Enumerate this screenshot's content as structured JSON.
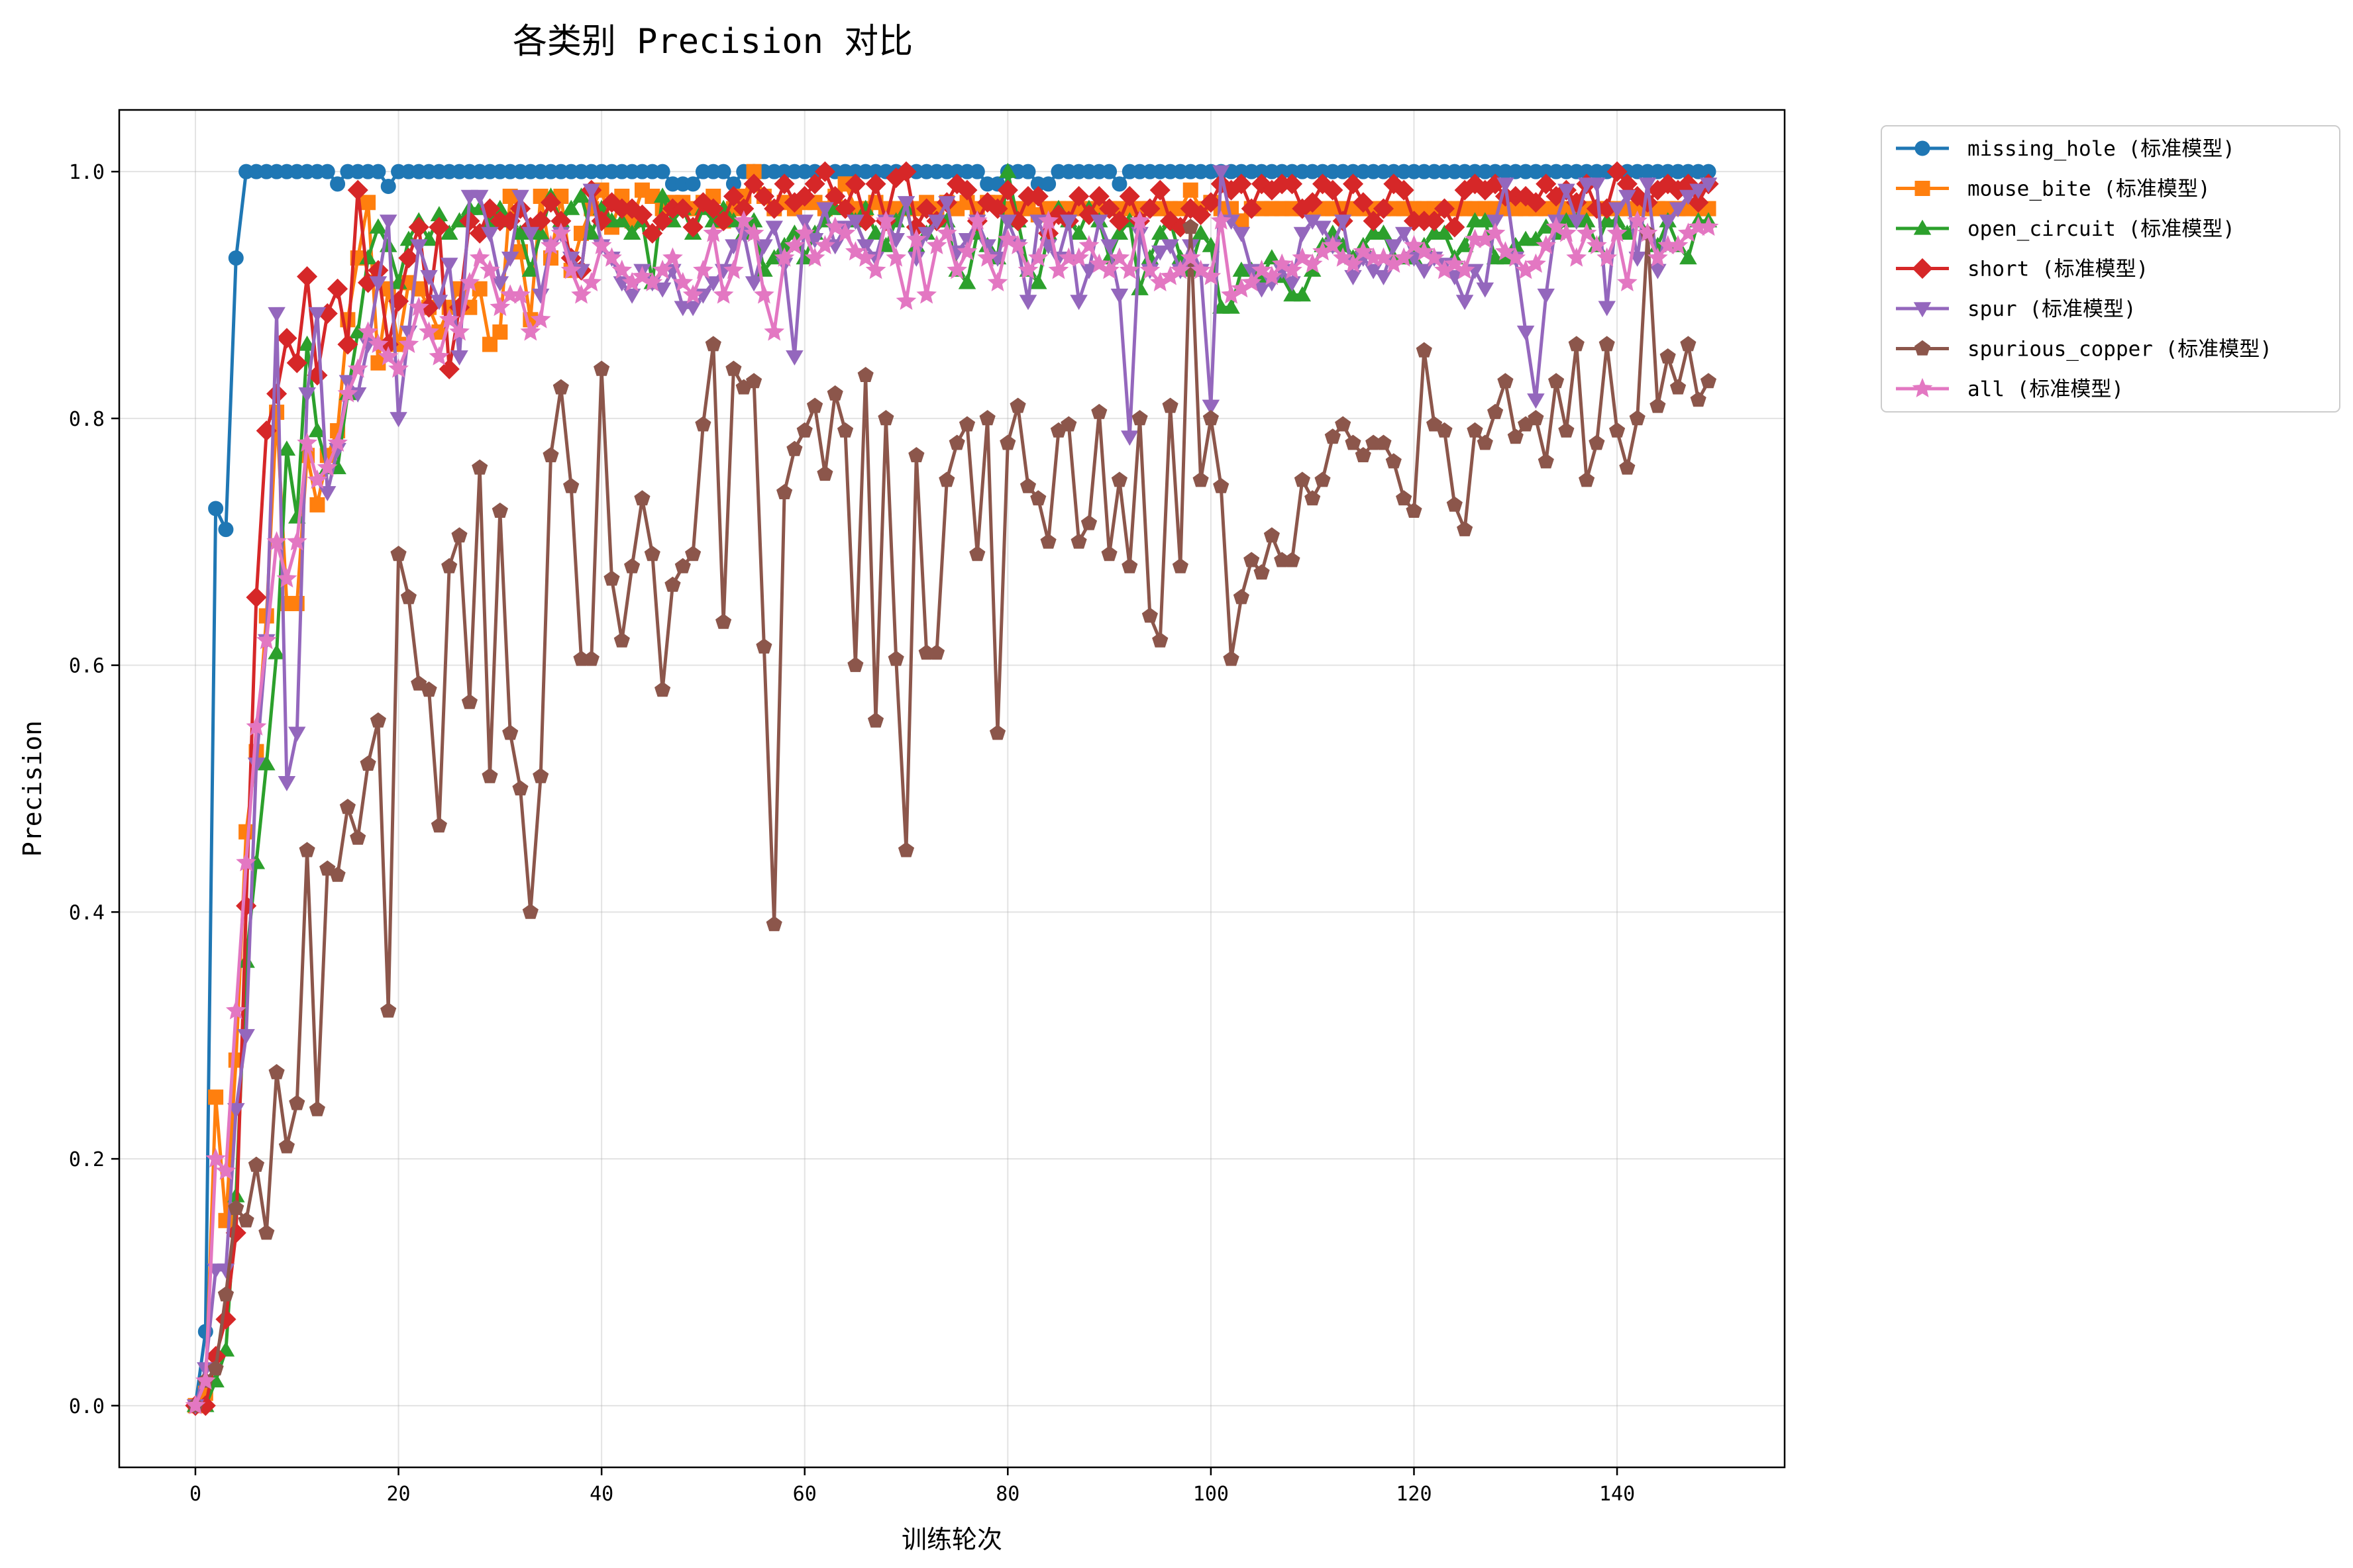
{
  "chart_data": {
    "type": "line",
    "title": "各类别 Precision 对比",
    "xlabel": "训练轮次",
    "ylabel": "Precision",
    "xlim": [
      -7.5,
      156.5
    ],
    "ylim": [
      -0.05,
      1.05
    ],
    "xticks": [
      0,
      20,
      40,
      60,
      80,
      100,
      120,
      140
    ],
    "yticks": [
      0.0,
      0.2,
      0.4,
      0.6,
      0.8,
      1.0
    ],
    "grid": true,
    "legend_position": "outside-top-right",
    "series": [
      {
        "name": "missing_hole (标准模型)",
        "color": "#1f77b4",
        "marker": "circle",
        "values": [
          0.0,
          0.06,
          0.727,
          0.71,
          0.93,
          1.0,
          1.0,
          1.0,
          1.0,
          1.0,
          1.0,
          1.0,
          1.0,
          1.0,
          0.99,
          1.0,
          1.0,
          1.0,
          1.0,
          0.988,
          1.0,
          1.0,
          1.0,
          1.0,
          1.0,
          1.0,
          1.0,
          1.0,
          1.0,
          1.0,
          1.0,
          1.0,
          1.0,
          1.0,
          1.0,
          1.0,
          1.0,
          1.0,
          1.0,
          1.0,
          1.0,
          1.0,
          1.0,
          1.0,
          1.0,
          1.0,
          1.0,
          0.99,
          0.99,
          0.99,
          1.0,
          1.0,
          1.0,
          0.99,
          1.0,
          1.0,
          1.0,
          1.0,
          1.0,
          1.0,
          1.0,
          1.0,
          1.0,
          1.0,
          1.0,
          1.0,
          1.0,
          1.0,
          1.0,
          1.0,
          1.0,
          1.0,
          1.0,
          1.0,
          1.0,
          1.0,
          1.0,
          1.0,
          0.99,
          0.99,
          1.0,
          1.0,
          1.0,
          0.99,
          0.99,
          1.0,
          1.0,
          1.0,
          1.0,
          1.0,
          1.0,
          0.99,
          1.0,
          1.0,
          1.0,
          1.0,
          1.0,
          1.0,
          1.0,
          1.0,
          1.0,
          1.0,
          1.0,
          1.0,
          1.0,
          1.0,
          1.0,
          1.0,
          1.0,
          1.0,
          1.0,
          1.0,
          1.0,
          1.0,
          1.0,
          1.0,
          1.0,
          1.0,
          1.0,
          1.0,
          1.0,
          1.0,
          1.0,
          1.0,
          1.0,
          1.0,
          1.0,
          1.0,
          1.0,
          1.0,
          1.0,
          1.0,
          1.0,
          1.0,
          1.0,
          1.0,
          1.0,
          1.0,
          1.0,
          1.0,
          1.0,
          1.0,
          1.0,
          1.0,
          1.0,
          1.0,
          1.0,
          1.0,
          1.0,
          1.0
        ]
      },
      {
        "name": "mouse_bite (标准模型)",
        "color": "#ff7f0e",
        "marker": "square",
        "values": [
          0.0,
          0.01,
          0.25,
          0.15,
          0.28,
          0.465,
          0.53,
          0.64,
          0.805,
          0.65,
          0.65,
          0.77,
          0.73,
          0.77,
          0.79,
          0.88,
          0.93,
          0.975,
          0.845,
          0.905,
          0.86,
          0.91,
          0.905,
          0.89,
          0.87,
          0.89,
          0.905,
          0.89,
          0.905,
          0.86,
          0.87,
          0.98,
          0.935,
          0.88,
          0.98,
          0.93,
          0.98,
          0.92,
          0.95,
          0.97,
          0.985,
          0.955,
          0.98,
          0.96,
          0.985,
          0.98,
          0.97,
          0.975,
          0.975,
          0.97,
          0.975,
          0.98,
          0.96,
          0.97,
          0.98,
          1.0,
          0.98,
          0.97,
          0.975,
          0.97,
          0.975,
          0.975,
          0.97,
          0.98,
          0.99,
          0.97,
          0.97,
          0.975,
          0.97,
          0.97,
          0.97,
          0.97,
          0.975,
          0.97,
          0.975,
          0.97,
          0.975,
          0.97,
          0.975,
          0.975,
          0.97,
          0.97,
          0.97,
          0.965,
          0.97,
          0.97,
          0.97,
          0.97,
          0.97,
          0.97,
          0.97,
          0.97,
          0.97,
          0.97,
          0.97,
          0.97,
          0.97,
          0.97,
          0.985,
          0.97,
          0.975,
          0.97,
          0.97,
          0.96,
          0.97,
          0.97,
          0.97,
          0.97,
          0.97,
          0.97,
          0.97,
          0.97,
          0.97,
          0.97,
          0.97,
          0.97,
          0.97,
          0.97,
          0.97,
          0.97,
          0.97,
          0.97,
          0.97,
          0.97,
          0.97,
          0.97,
          0.97,
          0.97,
          0.97,
          0.97,
          0.97,
          0.97,
          0.97,
          0.97,
          0.97,
          0.97,
          0.97,
          0.97,
          0.97,
          0.97,
          0.97,
          0.97,
          0.97,
          0.97,
          0.97,
          0.97,
          0.97,
          0.97,
          0.97,
          0.97
        ]
      },
      {
        "name": "open_circuit (标准模型)",
        "color": "#2ca02c",
        "marker": "triangle-up",
        "values": [
          0.0,
          0.0,
          0.02,
          0.045,
          0.17,
          0.36,
          0.44,
          0.52,
          0.61,
          0.775,
          0.72,
          0.86,
          0.79,
          0.76,
          0.76,
          0.82,
          0.87,
          0.93,
          0.955,
          0.94,
          0.91,
          0.945,
          0.96,
          0.945,
          0.965,
          0.95,
          0.96,
          0.97,
          0.97,
          0.96,
          0.97,
          0.96,
          0.95,
          0.92,
          0.95,
          0.98,
          0.96,
          0.97,
          0.98,
          0.95,
          0.97,
          0.96,
          0.96,
          0.95,
          0.96,
          0.91,
          0.98,
          0.96,
          0.97,
          0.95,
          0.97,
          0.96,
          0.97,
          0.96,
          0.95,
          0.96,
          0.92,
          0.93,
          0.94,
          0.95,
          0.93,
          0.95,
          0.96,
          0.97,
          0.97,
          0.96,
          0.97,
          0.95,
          0.94,
          0.96,
          0.97,
          0.94,
          0.95,
          0.96,
          0.96,
          0.92,
          0.91,
          0.95,
          0.94,
          0.93,
          1.0,
          0.96,
          0.92,
          0.91,
          0.95,
          0.97,
          0.96,
          0.95,
          0.97,
          0.96,
          0.93,
          0.95,
          0.96,
          0.905,
          0.93,
          0.95,
          0.96,
          0.93,
          0.92,
          0.95,
          0.94,
          0.89,
          0.89,
          0.92,
          0.92,
          0.915,
          0.93,
          0.915,
          0.9,
          0.9,
          0.92,
          0.94,
          0.95,
          0.94,
          0.93,
          0.94,
          0.95,
          0.95,
          0.93,
          0.93,
          0.93,
          0.94,
          0.95,
          0.95,
          0.93,
          0.94,
          0.96,
          0.96,
          0.93,
          0.93,
          0.94,
          0.945,
          0.945,
          0.955,
          0.95,
          0.96,
          0.96,
          0.96,
          0.94,
          0.96,
          0.96,
          0.95,
          0.96,
          0.95,
          0.94,
          0.96,
          0.94,
          0.93,
          0.96,
          0.96
        ]
      },
      {
        "name": "short (标准模型)",
        "color": "#d62728",
        "marker": "diamond",
        "values": [
          0.0,
          0.0,
          0.04,
          0.07,
          0.14,
          0.405,
          0.655,
          0.79,
          0.82,
          0.865,
          0.845,
          0.915,
          0.835,
          0.885,
          0.905,
          0.86,
          0.985,
          0.91,
          0.92,
          0.86,
          0.895,
          0.93,
          0.955,
          0.89,
          0.955,
          0.84,
          0.89,
          0.96,
          0.95,
          0.97,
          0.96,
          0.96,
          0.97,
          0.955,
          0.96,
          0.975,
          0.96,
          0.93,
          0.92,
          0.985,
          0.96,
          0.975,
          0.97,
          0.97,
          0.965,
          0.95,
          0.96,
          0.97,
          0.97,
          0.955,
          0.975,
          0.97,
          0.96,
          0.98,
          0.97,
          0.99,
          0.98,
          0.97,
          0.99,
          0.975,
          0.98,
          0.99,
          1.0,
          0.98,
          0.97,
          0.99,
          0.96,
          0.99,
          0.96,
          0.995,
          1.0,
          0.955,
          0.97,
          0.96,
          0.975,
          0.99,
          0.985,
          0.96,
          0.975,
          0.97,
          0.985,
          0.96,
          0.98,
          0.98,
          0.95,
          0.965,
          0.96,
          0.98,
          0.965,
          0.98,
          0.97,
          0.96,
          0.98,
          0.96,
          0.97,
          0.985,
          0.96,
          0.955,
          0.97,
          0.965,
          0.975,
          0.99,
          0.985,
          0.99,
          0.97,
          0.99,
          0.985,
          0.99,
          0.99,
          0.97,
          0.975,
          0.99,
          0.985,
          0.96,
          0.99,
          0.975,
          0.96,
          0.97,
          0.99,
          0.985,
          0.96,
          0.96,
          0.96,
          0.97,
          0.955,
          0.985,
          0.99,
          0.985,
          0.99,
          0.98,
          0.98,
          0.98,
          0.975,
          0.99,
          0.98,
          0.985,
          0.975,
          0.99,
          0.97,
          0.97,
          1.0,
          0.99,
          0.98,
          0.975,
          0.985,
          0.99,
          0.985,
          0.99,
          0.975,
          0.99
        ]
      },
      {
        "name": "spur (标准模型)",
        "color": "#9467bd",
        "marker": "triangle-down",
        "values": [
          0.0,
          0.03,
          0.11,
          0.11,
          0.24,
          0.3,
          0.52,
          0.62,
          0.885,
          0.505,
          0.545,
          0.82,
          0.885,
          0.74,
          0.775,
          0.83,
          0.82,
          0.86,
          0.91,
          0.96,
          0.8,
          0.87,
          0.94,
          0.915,
          0.895,
          0.925,
          0.85,
          0.98,
          0.98,
          0.95,
          0.91,
          0.93,
          0.98,
          0.95,
          0.9,
          0.94,
          0.95,
          0.93,
          0.92,
          0.985,
          0.94,
          0.93,
          0.91,
          0.9,
          0.92,
          0.91,
          0.905,
          0.92,
          0.89,
          0.89,
          0.9,
          0.91,
          0.92,
          0.94,
          0.95,
          0.91,
          0.94,
          0.955,
          0.925,
          0.85,
          0.96,
          0.945,
          0.97,
          0.94,
          0.955,
          0.96,
          0.94,
          0.93,
          0.96,
          0.945,
          0.975,
          0.93,
          0.95,
          0.96,
          0.975,
          0.935,
          0.945,
          0.96,
          0.94,
          0.93,
          0.96,
          0.94,
          0.895,
          0.96,
          0.94,
          0.93,
          0.96,
          0.895,
          0.92,
          0.96,
          0.94,
          0.9,
          0.785,
          0.95,
          0.92,
          0.935,
          0.94,
          0.92,
          0.94,
          0.92,
          0.81,
          1.0,
          0.96,
          0.95,
          0.92,
          0.905,
          0.91,
          0.92,
          0.91,
          0.95,
          0.96,
          0.955,
          0.94,
          0.96,
          0.915,
          0.93,
          0.92,
          0.915,
          0.94,
          0.95,
          0.93,
          0.92,
          0.93,
          0.925,
          0.915,
          0.895,
          0.92,
          0.905,
          0.96,
          0.99,
          0.93,
          0.87,
          0.815,
          0.9,
          0.96,
          0.985,
          0.96,
          0.99,
          0.99,
          0.89,
          0.97,
          0.98,
          0.93,
          0.99,
          0.92,
          0.96,
          0.97,
          0.98,
          0.985,
          0.99
        ]
      },
      {
        "name": "spurious_copper (标准模型)",
        "color": "#8c564b",
        "marker": "pentagon",
        "values": [
          0.0,
          0.02,
          0.03,
          0.09,
          0.16,
          0.15,
          0.195,
          0.14,
          0.27,
          0.21,
          0.245,
          0.45,
          0.24,
          0.435,
          0.43,
          0.485,
          0.46,
          0.52,
          0.555,
          0.32,
          0.69,
          0.655,
          0.585,
          0.58,
          0.47,
          0.68,
          0.705,
          0.57,
          0.76,
          0.51,
          0.725,
          0.545,
          0.5,
          0.4,
          0.51,
          0.77,
          0.825,
          0.745,
          0.605,
          0.605,
          0.84,
          0.67,
          0.62,
          0.68,
          0.735,
          0.69,
          0.58,
          0.665,
          0.68,
          0.69,
          0.795,
          0.86,
          0.635,
          0.84,
          0.825,
          0.83,
          0.615,
          0.39,
          0.74,
          0.775,
          0.79,
          0.81,
          0.755,
          0.82,
          0.79,
          0.6,
          0.835,
          0.555,
          0.8,
          0.605,
          0.45,
          0.77,
          0.61,
          0.61,
          0.75,
          0.78,
          0.795,
          0.69,
          0.8,
          0.545,
          0.78,
          0.81,
          0.745,
          0.735,
          0.7,
          0.79,
          0.795,
          0.7,
          0.715,
          0.805,
          0.69,
          0.75,
          0.68,
          0.8,
          0.64,
          0.62,
          0.81,
          0.68,
          0.955,
          0.75,
          0.8,
          0.745,
          0.605,
          0.655,
          0.685,
          0.675,
          0.705,
          0.685,
          0.685,
          0.75,
          0.735,
          0.75,
          0.785,
          0.795,
          0.78,
          0.77,
          0.78,
          0.78,
          0.765,
          0.735,
          0.725,
          0.855,
          0.795,
          0.79,
          0.73,
          0.71,
          0.79,
          0.78,
          0.805,
          0.83,
          0.785,
          0.795,
          0.8,
          0.765,
          0.83,
          0.79,
          0.86,
          0.75,
          0.78,
          0.86,
          0.79,
          0.76,
          0.8,
          0.95,
          0.81,
          0.85,
          0.825,
          0.86,
          0.815,
          0.83
        ]
      },
      {
        "name": "all (标准模型)",
        "color": "#e377c2",
        "marker": "star",
        "values": [
          0.0,
          0.02,
          0.2,
          0.19,
          0.32,
          0.44,
          0.55,
          0.62,
          0.7,
          0.67,
          0.7,
          0.78,
          0.75,
          0.76,
          0.78,
          0.82,
          0.84,
          0.87,
          0.86,
          0.85,
          0.84,
          0.86,
          0.89,
          0.87,
          0.85,
          0.88,
          0.87,
          0.91,
          0.93,
          0.92,
          0.89,
          0.9,
          0.9,
          0.87,
          0.88,
          0.94,
          0.95,
          0.92,
          0.9,
          0.91,
          0.94,
          0.93,
          0.92,
          0.91,
          0.915,
          0.91,
          0.92,
          0.93,
          0.91,
          0.9,
          0.92,
          0.95,
          0.9,
          0.92,
          0.96,
          0.95,
          0.9,
          0.87,
          0.93,
          0.94,
          0.95,
          0.93,
          0.94,
          0.955,
          0.95,
          0.935,
          0.93,
          0.92,
          0.96,
          0.93,
          0.895,
          0.945,
          0.9,
          0.94,
          0.95,
          0.92,
          0.935,
          0.96,
          0.93,
          0.91,
          0.945,
          0.94,
          0.92,
          0.93,
          0.96,
          0.92,
          0.93,
          0.93,
          0.94,
          0.925,
          0.92,
          0.93,
          0.92,
          0.96,
          0.92,
          0.91,
          0.915,
          0.92,
          0.93,
          0.92,
          0.915,
          0.96,
          0.9,
          0.905,
          0.91,
          0.92,
          0.915,
          0.925,
          0.92,
          0.93,
          0.925,
          0.935,
          0.94,
          0.93,
          0.925,
          0.935,
          0.93,
          0.93,
          0.925,
          0.93,
          0.94,
          0.935,
          0.93,
          0.92,
          0.925,
          0.92,
          0.945,
          0.945,
          0.95,
          0.935,
          0.93,
          0.92,
          0.925,
          0.94,
          0.955,
          0.95,
          0.93,
          0.95,
          0.94,
          0.93,
          0.95,
          0.91,
          0.96,
          0.95,
          0.93,
          0.94,
          0.94,
          0.95,
          0.955,
          0.955
        ]
      }
    ]
  }
}
